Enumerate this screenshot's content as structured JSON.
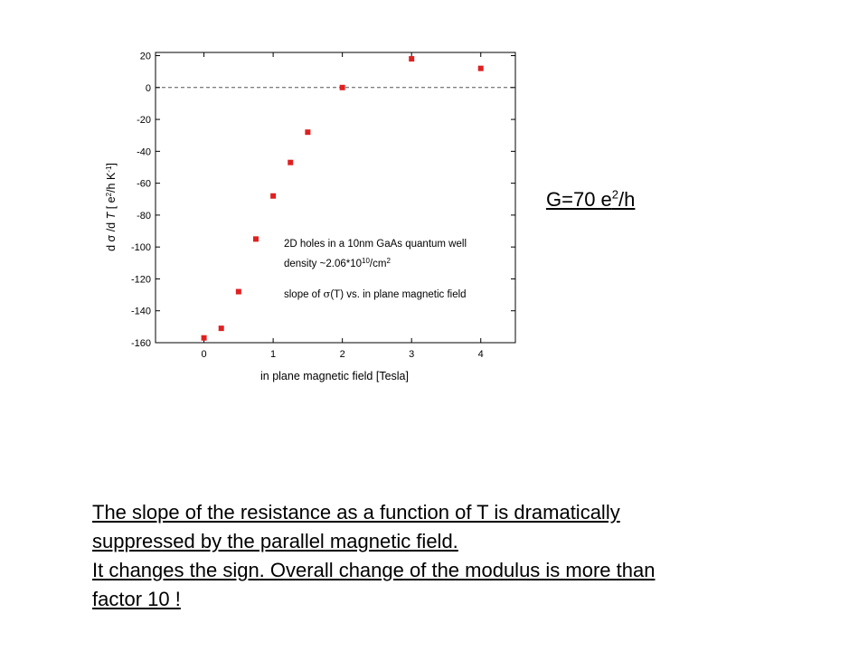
{
  "chart_data": {
    "type": "scatter",
    "xlabel": "in plane magnetic field [Tesla]",
    "ylabel": {
      "parts": [
        "d σ /d ",
        "T",
        " [ e",
        "2",
        "/h K",
        "-1",
        "]"
      ]
    },
    "xlim": [
      -0.7,
      4.5
    ],
    "ylim": [
      -160,
      22
    ],
    "xticks": [
      0,
      1,
      2,
      3,
      4
    ],
    "yticks": [
      20,
      0,
      -20,
      -40,
      -60,
      -80,
      -100,
      -120,
      -140,
      -160
    ],
    "reference_line": {
      "y": 0,
      "style": "dashed"
    },
    "grid": false,
    "marker_color": "#e02020",
    "series": [
      {
        "x": [
          0,
          0.25,
          0.5,
          0.75,
          1.0,
          1.25,
          1.5,
          2.0,
          3.0,
          4.0
        ],
        "y": [
          -157,
          -151,
          -128,
          -95,
          -68,
          -47,
          -28,
          0,
          18,
          12
        ]
      }
    ],
    "annotations": {
      "line1": "2D holes in a 10nm GaAs quantum well",
      "line2_parts": [
        "density ~2.06*10",
        "10",
        "/cm",
        "2"
      ],
      "line3_parts": [
        "slope of ",
        "σ",
        "(T) vs. in plane magnetic field"
      ]
    }
  },
  "g_label": {
    "prefix": "G=70 e",
    "sup": "2",
    "suffix": "/h "
  },
  "caption": {
    "lines": [
      "The slope of the resistance as a function of T is dramatically",
      "suppressed by the parallel magnetic field. ",
      "It changes the sign. Overall change of the modulus is more than ",
      "factor 10 !"
    ]
  }
}
